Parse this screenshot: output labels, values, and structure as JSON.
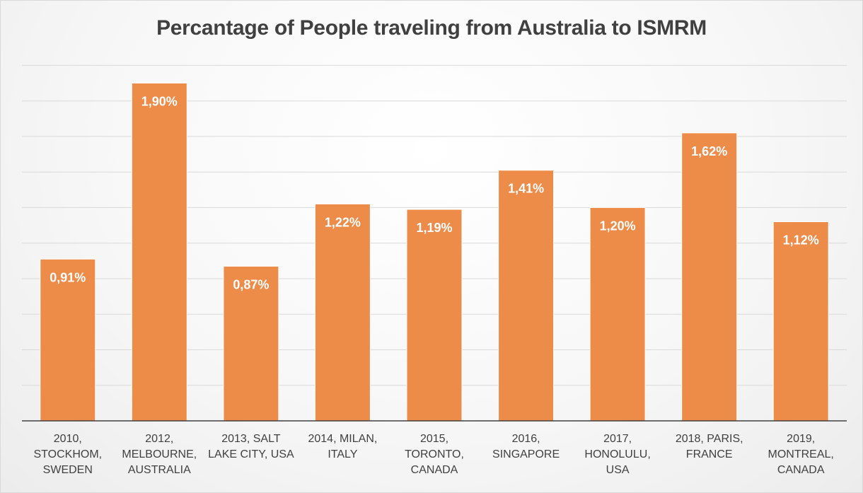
{
  "chart_data": {
    "type": "bar",
    "title": "Percantage of People traveling from Australia to ISMRM",
    "xlabel": "",
    "ylabel": "",
    "ylim": [
      0,
      2.0
    ],
    "grid": true,
    "legend": "none",
    "categories": [
      [
        "2010,",
        "STOCKHOM,",
        "SWEDEN"
      ],
      [
        "2012,",
        "MELBOURNE,",
        "AUSTRALIA"
      ],
      [
        "2013, SALT",
        "LAKE CITY, USA"
      ],
      [
        "2014, MILAN,",
        "ITALY"
      ],
      [
        "2015,",
        "TORONTO,",
        "CANADA"
      ],
      [
        "2016,",
        "SINGAPORE"
      ],
      [
        "2017,",
        "HONOLULU,",
        "USA"
      ],
      [
        "2018, PARIS,",
        "FRANCE"
      ],
      [
        "2019,",
        "MONTREAL,",
        "CANADA"
      ]
    ],
    "values": [
      0.91,
      1.9,
      0.87,
      1.22,
      1.19,
      1.41,
      1.2,
      1.62,
      1.12
    ],
    "data_labels": [
      "0,91%",
      "1,90%",
      "0,87%",
      "1,22%",
      "1,19%",
      "1,41%",
      "1,20%",
      "1,62%",
      "1,12%"
    ],
    "colors": {
      "bar": "#ed8b49",
      "bar_edge": "#ffffff",
      "gridline": "#d9d9d9",
      "axis": "#404040"
    }
  }
}
